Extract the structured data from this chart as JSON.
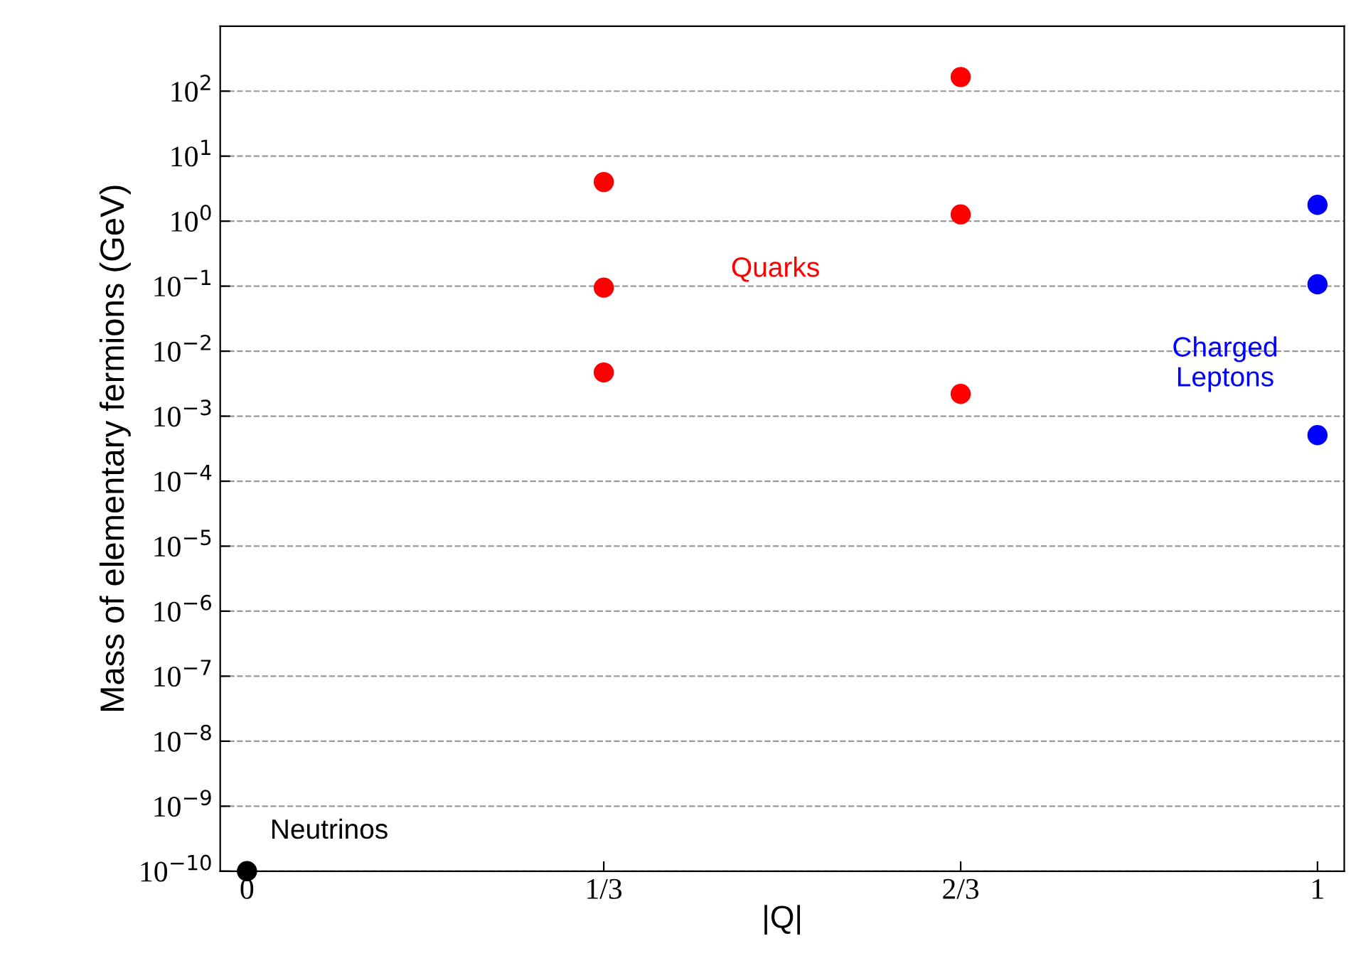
{
  "chart_data": {
    "type": "scatter",
    "xlabel": "|Q|",
    "ylabel": "Mass of elementary fermions (GeV)",
    "log": "y",
    "xlim": [
      -0.025,
      1.025
    ],
    "ylim": [
      1e-10,
      1000
    ],
    "xticks": [
      0,
      {
        "value": 0.3333,
        "label": "1/3"
      },
      {
        "value": 0.6667,
        "label": "2/3"
      },
      1
    ],
    "yticks": [
      {
        "value": 1e-10,
        "label": "10$^{−10}$"
      },
      {
        "value": 1e-09,
        "label": "10$^{−9}$"
      },
      {
        "value": 1e-08,
        "label": "10$^{−8}$"
      },
      {
        "value": 1e-07,
        "label": "10$^{−7}$"
      },
      {
        "value": 1e-06,
        "label": "10$^{−6}$"
      },
      {
        "value": 1e-05,
        "label": "10$^{−5}$"
      },
      {
        "value": 0.0001,
        "label": "10$^{−4}$"
      },
      {
        "value": 0.001,
        "label": "10$^{−3}$"
      },
      {
        "value": 0.01,
        "label": "10$^{−2}$"
      },
      {
        "value": 0.1,
        "label": "10$^{−1}$"
      },
      {
        "value": 1,
        "label": "10$^{0}$"
      },
      {
        "value": 10,
        "label": "10$^{1}$"
      },
      {
        "value": 100,
        "label": "10$^{2}$"
      }
    ],
    "grid": "y",
    "marker": "circle",
    "series": [
      {
        "name": "Quarks",
        "color": "#ff0000",
        "x": [
          0.3333,
          0.3333,
          0.3333,
          0.6667,
          0.6667,
          0.6667
        ],
        "values": [
          4.0,
          0.095,
          0.0047,
          165,
          1.27,
          0.0022
        ]
      },
      {
        "name": "Charged\nLeptons",
        "color": "#0000ff",
        "x": [
          1,
          1,
          1
        ],
        "values": [
          1.78,
          0.107,
          0.00051
        ]
      },
      {
        "name": "Neutrinos",
        "color": "#000000",
        "x": [
          0
        ],
        "values": [
          1e-10
        ]
      }
    ]
  }
}
